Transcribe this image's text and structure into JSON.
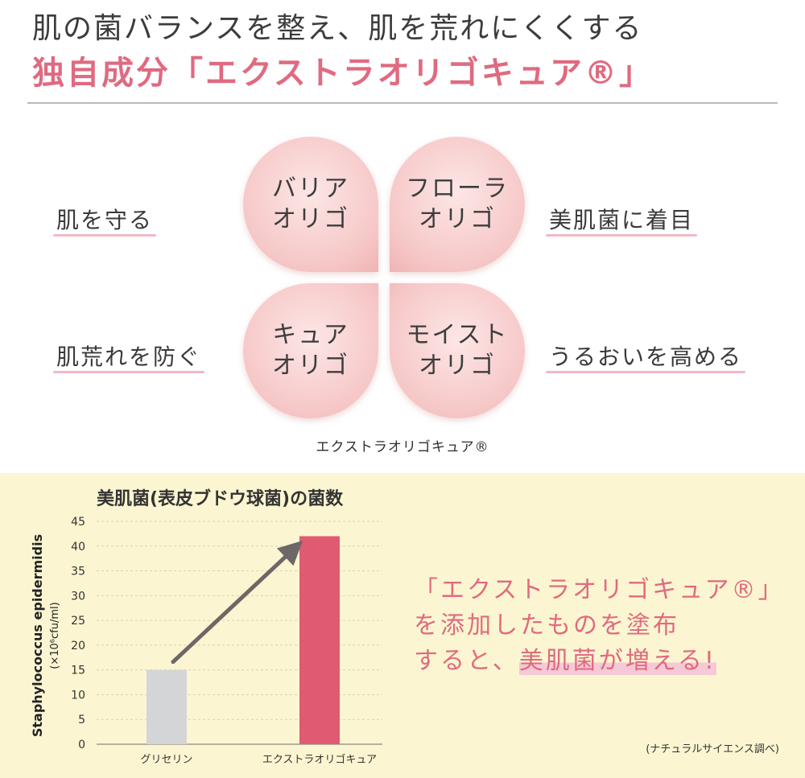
{
  "header": {
    "line1": "肌の菌バランスを整え、肌を荒れにくくする",
    "line2": "独自成分「エクストラオリゴキュア®」"
  },
  "clover": {
    "petals": [
      {
        "line1": "バリア",
        "line2": "オリゴ"
      },
      {
        "line1": "フローラ",
        "line2": "オリゴ"
      },
      {
        "line1": "キュア",
        "line2": "オリゴ"
      },
      {
        "line1": "モイスト",
        "line2": "オリゴ"
      }
    ],
    "left_top": "肌を守る",
    "right_top": "美肌菌に着目",
    "left_bottom": "肌荒れを防ぐ",
    "right_bottom": "うるおいを高める",
    "center_label": "エクストラオリゴキュア®"
  },
  "chart_data": {
    "type": "bar",
    "title": "美肌菌(表皮ブドウ球菌)の菌数",
    "ylabel": "Staphylococcus epidermidis",
    "yunit": "(×10⁶cfu/ml)",
    "xlabel": "",
    "categories": [
      "グリセリン",
      "エクストラオリゴキュア"
    ],
    "values": [
      15,
      42
    ],
    "ylim": [
      0,
      45
    ],
    "yticks": [
      0,
      5,
      10,
      15,
      20,
      25,
      30,
      35,
      40,
      45
    ],
    "grid": true,
    "colors": [
      "#d4d5d7",
      "#e05a72"
    ],
    "arrow_color": "#6e6767"
  },
  "message": {
    "line1": "「エクストラオリゴキュア®」",
    "line2": "を添加したものを塗布",
    "line3_pre": "すると、",
    "line3_highlight": "美肌菌が増える!"
  },
  "source": "(ナチュラルサイエンス調べ)"
}
